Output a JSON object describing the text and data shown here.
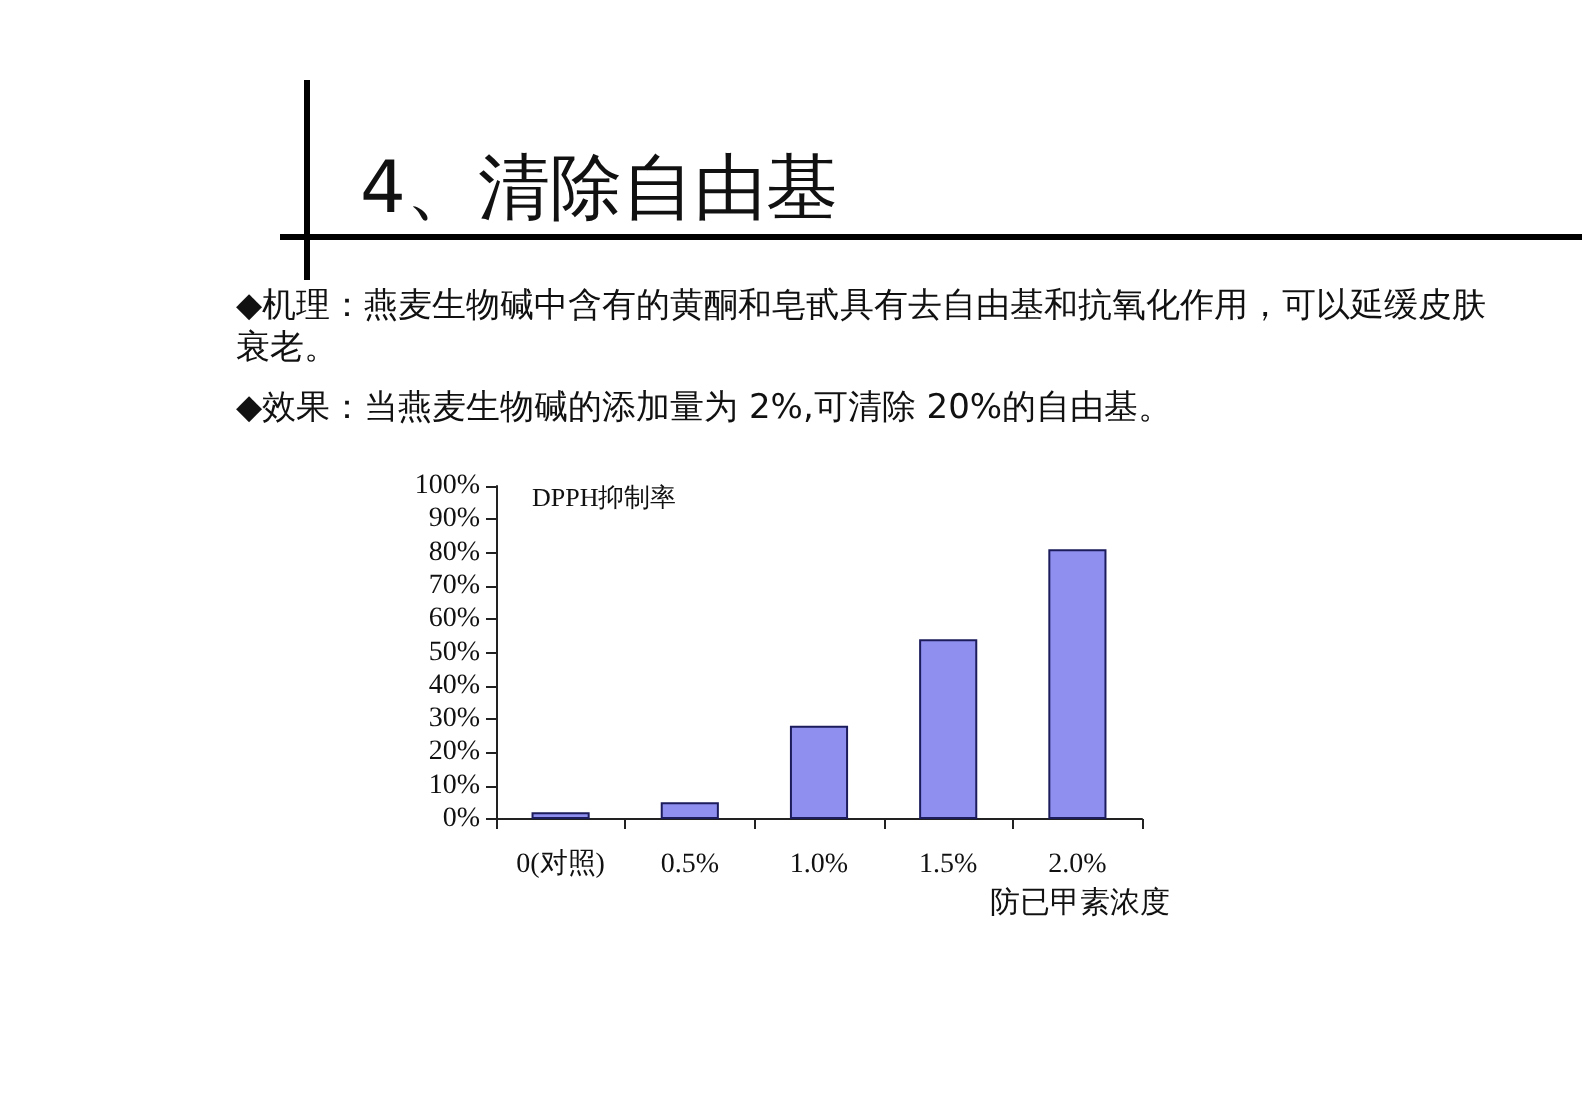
{
  "chart_data": {
    "type": "bar",
    "title": "4、清除自由基",
    "annotations": [
      "◆机理：燕麦生物碱中含有的黄酮和皂甙具有去自由基和抗氧化作用，可以延缓皮肤衰老。",
      "◆效果：当燕麦生物碱的添加量为 2%,可清除 20%的自由基。"
    ],
    "xlabel": "防已甲素浓度",
    "ylabel": "DPPH抑制率",
    "categories": [
      "0(对照)",
      "0.5%",
      "1.0%",
      "1.5%",
      "2.0%"
    ],
    "values": [
      2,
      5,
      28,
      54,
      81
    ],
    "color": "#8f8ff0",
    "ylim": [
      0,
      100
    ],
    "yticks": [
      {
        "value": 0,
        "label": "0%"
      },
      {
        "value": 10,
        "label": "10%"
      },
      {
        "value": 20,
        "label": "20%"
      },
      {
        "value": 30,
        "label": "30%"
      },
      {
        "value": 40,
        "label": "40%"
      },
      {
        "value": 50,
        "label": "50%"
      },
      {
        "value": 60,
        "label": "60%"
      },
      {
        "value": 70,
        "label": "70%"
      },
      {
        "value": 80,
        "label": "80%"
      },
      {
        "value": 90,
        "label": "90%"
      },
      {
        "value": 100,
        "label": "100%"
      }
    ],
    "grid": false
  }
}
